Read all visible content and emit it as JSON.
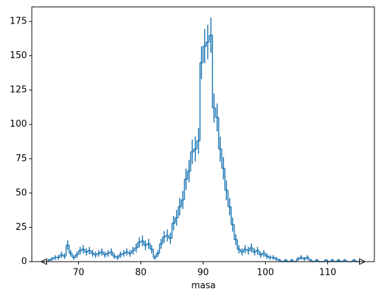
{
  "chart_data": {
    "type": "histogram",
    "x_label": "masa",
    "color": "#1f77b4",
    "bins": [
      65,
      65.5,
      66,
      66.5,
      67,
      67.5,
      68,
      68.5,
      69,
      69.5,
      70,
      70.5,
      71,
      71.5,
      72,
      72.5,
      73,
      73.5,
      74,
      74.5,
      75,
      75.5,
      76,
      76.5,
      77,
      77.5,
      78,
      78.5,
      79,
      79.5,
      80,
      80.5,
      81,
      81.5,
      82,
      82.5,
      83,
      83.5,
      84,
      84.5,
      85,
      85.5,
      86,
      86.5,
      87,
      87.5,
      88,
      88.5,
      89,
      89.5,
      90,
      90.5,
      91,
      91.5,
      92,
      92.5,
      93,
      93.5,
      94,
      94.5,
      95,
      95.5,
      96,
      96.5,
      97,
      97.5,
      98,
      98.5,
      99,
      99.5,
      100,
      100.5,
      101,
      101.5,
      102,
      102.5,
      103,
      103.5,
      104,
      104.5,
      105,
      105.5,
      106,
      106.5,
      107,
      107.5,
      108,
      108.5,
      109,
      109.5,
      110,
      110.5,
      111,
      111.5,
      112,
      112.5,
      113,
      113.5,
      114,
      114.5,
      115
    ],
    "values": [
      1,
      2,
      3,
      3,
      5,
      4,
      12,
      6,
      3,
      5,
      8,
      9,
      7,
      8,
      6,
      5,
      6,
      7,
      5,
      6,
      7,
      4,
      3,
      5,
      6,
      7,
      6,
      8,
      10,
      14,
      15,
      12,
      13,
      9,
      3,
      6,
      13,
      18,
      19,
      17,
      28,
      32,
      40,
      45,
      60,
      66,
      80,
      82,
      88,
      145,
      157,
      160,
      165,
      112,
      105,
      82,
      68,
      52,
      40,
      27,
      16,
      9,
      7,
      9,
      8,
      10,
      7,
      8,
      5,
      6,
      4,
      3,
      3,
      2,
      1,
      0,
      1,
      0,
      1,
      0,
      2,
      3,
      2,
      3,
      1,
      0,
      1,
      0,
      0,
      1,
      0,
      1,
      0,
      1,
      0,
      1,
      0,
      0,
      1,
      0
    ],
    "errors": [
      1,
      1.4,
      1.7,
      1.7,
      2.2,
      2,
      3.5,
      2.4,
      1.7,
      2.2,
      2.8,
      3,
      2.6,
      2.8,
      2.4,
      2.2,
      2.4,
      2.6,
      2.2,
      2.4,
      2.6,
      2,
      1.7,
      2.2,
      2.4,
      2.6,
      2.4,
      2.8,
      3.2,
      3.7,
      3.9,
      3.5,
      3.6,
      3,
      1.7,
      2.4,
      3.6,
      4.2,
      4.4,
      4.1,
      5.3,
      5.7,
      6.3,
      6.7,
      7.7,
      8.1,
      8.9,
      9.1,
      9.4,
      12,
      12.5,
      12.6,
      12.8,
      10.6,
      10.2,
      9.1,
      8.2,
      7.2,
      6.3,
      5.2,
      4,
      3,
      2.6,
      3,
      2.8,
      3.2,
      2.6,
      2.8,
      2.2,
      2.4,
      2,
      1.7,
      1.7,
      1.4,
      1,
      0,
      1,
      0,
      1,
      0,
      1.4,
      1.7,
      1.4,
      1.7,
      1,
      0,
      1,
      0,
      0,
      1,
      0,
      1,
      0,
      1,
      0,
      1,
      0,
      0,
      1,
      0
    ],
    "xlim": [
      62.5,
      117.5
    ],
    "ylim": [
      0,
      185.6
    ],
    "xticks": [
      70,
      80,
      90,
      100,
      110
    ],
    "yticks": [
      0,
      25,
      50,
      75,
      100,
      125,
      150,
      175
    ]
  }
}
